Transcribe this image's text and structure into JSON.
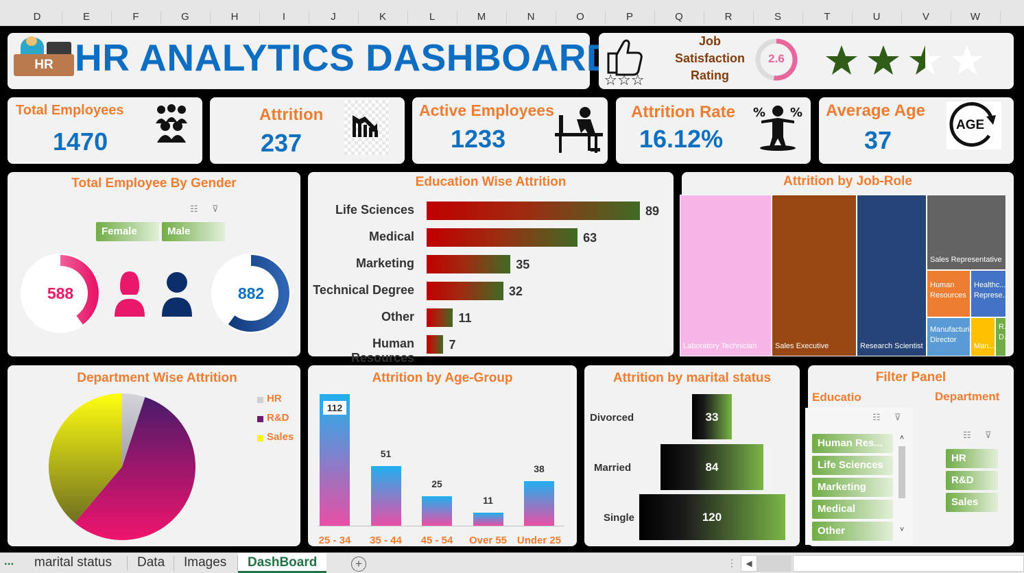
{
  "columns": [
    "D",
    "E",
    "F",
    "G",
    "H",
    "I",
    "J",
    "K",
    "L",
    "M",
    "N",
    "O",
    "P",
    "Q",
    "R",
    "S",
    "T",
    "U",
    "V",
    "W"
  ],
  "header": {
    "title": "HR ANALYTICS DASHBOARD",
    "logo_text": "HR"
  },
  "job_satisfaction": {
    "label_line1": "Job",
    "label_line2": "Satisfaction",
    "label_line3": "Rating",
    "value": "2.6",
    "rating_fraction": 0.52,
    "stars_filled": 2.5,
    "stars_total": 4
  },
  "kpis": [
    {
      "label": "Total Employees",
      "value": "1470"
    },
    {
      "label": "Attrition",
      "value": "237"
    },
    {
      "label": "Active Employees",
      "value": "1233"
    },
    {
      "label": "Attrition Rate",
      "value": "16.12%"
    },
    {
      "label": "Average Age",
      "value": "37"
    }
  ],
  "age_icon_text": "AGE",
  "gender": {
    "title": "Total Employee  By Gender",
    "female_label": "Female",
    "male_label": "Male",
    "female_value": "588",
    "male_value": "882",
    "female_share": 0.4,
    "male_share": 0.6,
    "colors": {
      "female": "#e8196b",
      "male": "#0b2f6b"
    }
  },
  "education_chart": {
    "title": "Education Wise Attrition",
    "categories": [
      "Life Sciences",
      "Medical",
      "Marketing",
      "Technical Degree",
      "Other",
      "Human Resources"
    ],
    "values": [
      89,
      63,
      35,
      32,
      11,
      7
    ],
    "max": 89
  },
  "jobrole": {
    "title": "Attrition by Job-Role",
    "tiles": [
      {
        "label": "Laboratory Technician",
        "value": 62,
        "color": "#f7b6e8"
      },
      {
        "label": "Sales Executive",
        "value": 57,
        "color": "#994712"
      },
      {
        "label": "Research Scientist",
        "value": 47,
        "color": "#264478"
      },
      {
        "label": "Sales Representative",
        "value": 33,
        "color": "#636363"
      },
      {
        "label": "Human Resources",
        "value": 12,
        "color": "#ed7d31"
      },
      {
        "label": "Healthc... Represe...",
        "value": 9,
        "color": "#4472c4"
      },
      {
        "label": "Manufacturi... Director",
        "value": 10,
        "color": "#5b9bd5"
      },
      {
        "label": "Man...",
        "value": 5,
        "color": "#ffc000"
      },
      {
        "label": "R... D...",
        "value": 2,
        "color": "#70ad47"
      }
    ]
  },
  "department": {
    "title": "Department Wise Attrition",
    "legend": [
      "HR",
      "R&D",
      "Sales"
    ],
    "values": [
      12,
      133,
      92
    ],
    "colors": [
      "#cfcfd6",
      "#6b1a6f",
      "#f7f11c"
    ]
  },
  "age_group": {
    "title": "Attrition by Age-Group",
    "categories": [
      "25 - 34",
      "35 - 44",
      "45 - 54",
      "Over 55",
      "Under 25"
    ],
    "values": [
      112,
      51,
      25,
      11,
      38
    ],
    "max": 112
  },
  "marital": {
    "title": "Attrition by marital status",
    "categories": [
      "Divorced",
      "Married",
      "Single"
    ],
    "values": [
      33,
      84,
      120
    ],
    "max": 120
  },
  "filter": {
    "title": "Filter Panel",
    "edu_label": "Educatio",
    "dept_label": "Department",
    "edu_items": [
      "Human Res...",
      "Life Sciences",
      "Marketing",
      "Medical",
      "Other"
    ],
    "dept_items": [
      "HR",
      "R&D",
      "Sales"
    ]
  },
  "sheets": {
    "ellipsis": "...",
    "tabs": [
      "marital status",
      "Data",
      "Images",
      "DashBoard"
    ],
    "active": "DashBoard",
    "add": "+"
  }
}
